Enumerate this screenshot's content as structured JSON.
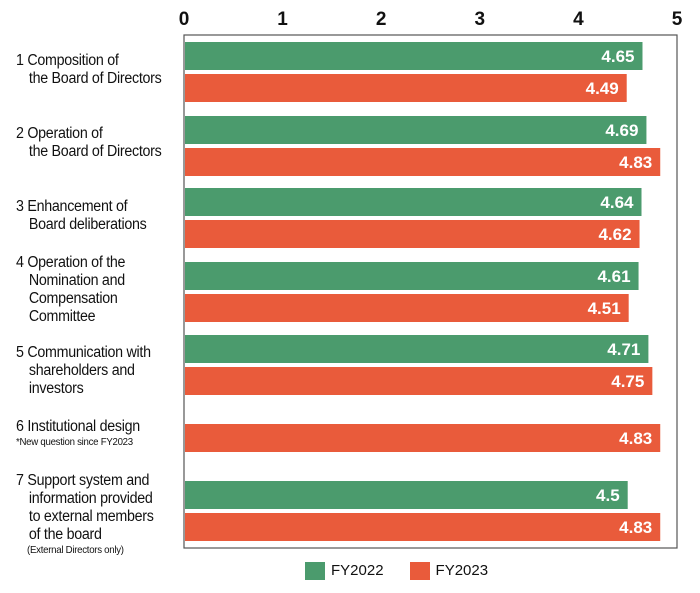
{
  "chart_data": {
    "type": "bar",
    "orientation": "horizontal",
    "xlim": [
      0,
      5
    ],
    "ticks": [
      "0",
      "1",
      "2",
      "3",
      "4",
      "5"
    ],
    "grid": false,
    "legend_placement": "bottom",
    "categories": [
      {
        "num": "1",
        "lines": [
          "Composition of",
          "the Board of Directors"
        ],
        "note": ""
      },
      {
        "num": "2",
        "lines": [
          "Operation of",
          "the Board of Directors"
        ],
        "note": ""
      },
      {
        "num": "3",
        "lines": [
          "Enhancement of",
          "Board deliberations"
        ],
        "note": ""
      },
      {
        "num": "4",
        "lines": [
          "Operation of the",
          "Nomination and",
          "Compensation",
          "Committee"
        ],
        "note": ""
      },
      {
        "num": "5",
        "lines": [
          "Communication with",
          "shareholders and",
          "investors"
        ],
        "note": ""
      },
      {
        "num": "6",
        "lines": [
          "Institutional design"
        ],
        "note": "*New question since FY2023"
      },
      {
        "num": "7",
        "lines": [
          "Support system and",
          "information provided",
          "to external members",
          "of the board"
        ],
        "note": "(External Directors only)"
      }
    ],
    "series": [
      {
        "name": "FY2022",
        "color": "#4b9b6d",
        "values": [
          4.65,
          4.69,
          4.64,
          4.61,
          4.71,
          null,
          4.5
        ],
        "labels": [
          "4.65",
          "4.69",
          "4.64",
          "4.61",
          "4.71",
          "",
          "4.5"
        ]
      },
      {
        "name": "FY2023",
        "color": "#e95b3b",
        "values": [
          4.49,
          4.83,
          4.62,
          4.51,
          4.75,
          4.83,
          4.83
        ],
        "labels": [
          "4.49",
          "4.83",
          "4.62",
          "4.51",
          "4.75",
          "4.83",
          "4.83"
        ]
      }
    ]
  }
}
